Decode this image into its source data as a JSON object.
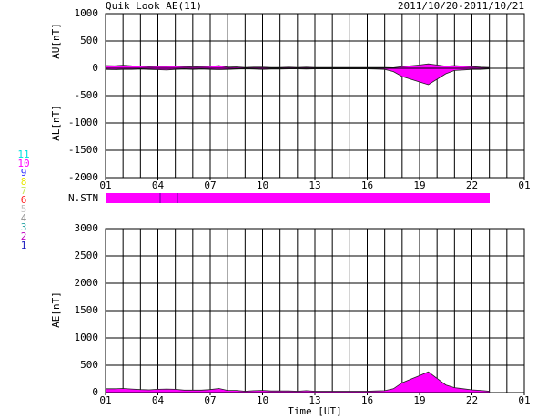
{
  "chart_data": [
    {
      "type": "area",
      "title": "Quik Look AE(11)",
      "subtitle": "2011/10/20-2011/10/21",
      "ylabel_upper": "AU[nT]",
      "ylabel_lower": "AL[nT]",
      "nstn_label": "N.STN",
      "station_legend": [
        {
          "label": "11",
          "color": "#00e0e0"
        },
        {
          "label": "10",
          "color": "#ff00ff"
        },
        {
          "label": "9",
          "color": "#3030ff"
        },
        {
          "label": "8",
          "color": "#e8e800"
        },
        {
          "label": "7",
          "color": "#c8e860"
        },
        {
          "label": "6",
          "color": "#ff2020"
        },
        {
          "label": "5",
          "color": "#c0c0c0"
        },
        {
          "label": "4",
          "color": "#909090"
        },
        {
          "label": "3",
          "color": "#20a0a0"
        },
        {
          "label": "2",
          "color": "#c000c0"
        },
        {
          "label": "1",
          "color": "#2020c0"
        }
      ],
      "x": [
        0,
        0.5,
        1,
        1.5,
        2,
        2.5,
        3,
        3.5,
        4,
        4.5,
        5,
        5.5,
        6,
        6.5,
        7,
        7.5,
        8,
        8.5,
        9,
        9.5,
        10,
        10.5,
        11,
        11.5,
        12,
        12.5,
        13,
        13.5,
        14,
        14.5,
        15,
        15.5,
        16,
        16.5,
        17,
        17.5,
        18,
        18.5,
        19,
        19.5,
        20,
        20.5,
        21,
        21.5,
        22
      ],
      "series": [
        {
          "color": "#ff00ff",
          "values": [
            50,
            45,
            55,
            45,
            40,
            30,
            35,
            35,
            40,
            30,
            25,
            30,
            35,
            50,
            20,
            25,
            15,
            20,
            20,
            15,
            15,
            20,
            15,
            20,
            15,
            15,
            15,
            15,
            15,
            15,
            15,
            15,
            15,
            10,
            30,
            45,
            60,
            80,
            60,
            40,
            50,
            40,
            30,
            20,
            15
          ]
        },
        {
          "color": "#ff00ff",
          "values": [
            -20,
            -25,
            -20,
            -20,
            -15,
            -20,
            -25,
            -30,
            -20,
            -15,
            -20,
            -15,
            -20,
            -25,
            -20,
            -15,
            -10,
            -15,
            -20,
            -15,
            -15,
            -10,
            -10,
            -15,
            -10,
            -10,
            -10,
            -10,
            -10,
            -10,
            -10,
            -15,
            -20,
            -60,
            -150,
            -200,
            -250,
            -300,
            -200,
            -100,
            -40,
            -30,
            -20,
            -20,
            -10
          ]
        }
      ],
      "xlim": [
        0,
        24
      ],
      "xticks": [
        {
          "value": 0,
          "label": "01"
        },
        {
          "value": 3,
          "label": "04"
        },
        {
          "value": 6,
          "label": "07"
        },
        {
          "value": 9,
          "label": "10"
        },
        {
          "value": 12,
          "label": "13"
        },
        {
          "value": 15,
          "label": "16"
        },
        {
          "value": 18,
          "label": "19"
        },
        {
          "value": 21,
          "label": "22"
        },
        {
          "value": 24,
          "label": "01"
        }
      ],
      "xgrid": [
        0,
        1,
        2,
        3,
        4,
        5,
        6,
        7,
        8,
        9,
        10,
        11,
        12,
        13,
        14,
        15,
        16,
        17,
        18,
        19,
        20,
        21,
        22,
        23,
        24
      ],
      "ylim": [
        -2000,
        1000
      ],
      "yticks": [
        1000,
        500,
        0,
        -500,
        -1000,
        -1500,
        -2000
      ],
      "grid": true
    },
    {
      "type": "area",
      "ylabel": "AE[nT]",
      "xlabel": "Time [UT]",
      "x": [
        0,
        0.5,
        1,
        1.5,
        2,
        2.5,
        3,
        3.5,
        4,
        4.5,
        5,
        5.5,
        6,
        6.5,
        7,
        7.5,
        8,
        8.5,
        9,
        9.5,
        10,
        10.5,
        11,
        11.5,
        12,
        12.5,
        13,
        13.5,
        14,
        14.5,
        15,
        15.5,
        16,
        16.5,
        17,
        17.5,
        18,
        18.5,
        19,
        19.5,
        20,
        20.5,
        21,
        21.5,
        22
      ],
      "series": [
        {
          "color": "#ff00ff",
          "values": [
            70,
            70,
            75,
            65,
            55,
            50,
            60,
            65,
            60,
            45,
            45,
            45,
            55,
            75,
            40,
            40,
            25,
            35,
            40,
            30,
            30,
            30,
            25,
            35,
            25,
            25,
            25,
            25,
            25,
            25,
            25,
            30,
            35,
            70,
            180,
            245,
            310,
            380,
            260,
            140,
            90,
            70,
            50,
            40,
            25
          ]
        }
      ],
      "xlim": [
        0,
        24
      ],
      "xticks": [
        {
          "value": 0,
          "label": "01"
        },
        {
          "value": 3,
          "label": "04"
        },
        {
          "value": 6,
          "label": "07"
        },
        {
          "value": 9,
          "label": "10"
        },
        {
          "value": 12,
          "label": "13"
        },
        {
          "value": 15,
          "label": "16"
        },
        {
          "value": 18,
          "label": "19"
        },
        {
          "value": 21,
          "label": "22"
        },
        {
          "value": 24,
          "label": "01"
        }
      ],
      "xgrid": [
        0,
        1,
        2,
        3,
        4,
        5,
        6,
        7,
        8,
        9,
        10,
        11,
        12,
        13,
        14,
        15,
        16,
        17,
        18,
        19,
        20,
        21,
        22,
        23,
        24
      ],
      "ylim": [
        0,
        3000
      ],
      "yticks": [
        3000,
        2500,
        2000,
        1500,
        1000,
        500,
        0
      ],
      "grid": true
    }
  ]
}
